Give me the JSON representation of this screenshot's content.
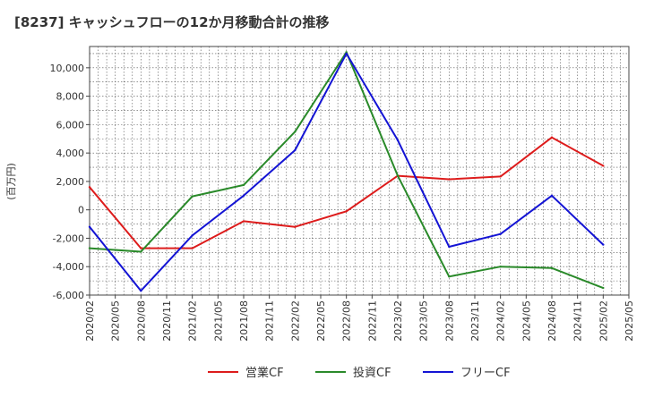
{
  "chart_data": {
    "type": "line",
    "title": "[8237]  キャッシュフローの12か月移動合計の推移",
    "ylabel": "(百万円)",
    "xlabel": "",
    "ylim": [
      -6000,
      11500
    ],
    "yticks": [
      -6000,
      -4000,
      -2000,
      0,
      2000,
      4000,
      6000,
      8000,
      10000
    ],
    "ytick_labels": [
      "-6,000",
      "-4,000",
      "-2,000",
      "0",
      "2,000",
      "4,000",
      "6,000",
      "8,000",
      "10,000"
    ],
    "categories": [
      "2020/02",
      "2020/05",
      "2020/08",
      "2020/11",
      "2021/02",
      "2021/05",
      "2021/08",
      "2021/11",
      "2022/02",
      "2022/05",
      "2022/08",
      "2022/11",
      "2023/02",
      "2023/05",
      "2023/08",
      "2023/11",
      "2024/02",
      "2024/05",
      "2024/08",
      "2024/11",
      "2025/02",
      "2025/05"
    ],
    "grid": true,
    "legend_position": "bottom",
    "series": [
      {
        "name": "営業CF",
        "color": "#dd1c1c",
        "x": [
          "2020/02",
          "2020/08",
          "2021/02",
          "2021/08",
          "2022/02",
          "2022/08",
          "2023/02",
          "2023/08",
          "2024/02",
          "2024/08",
          "2025/02"
        ],
        "values": [
          1600,
          -2700,
          -2700,
          -800,
          -1200,
          -100,
          2400,
          2150,
          2350,
          5100,
          3100
        ]
      },
      {
        "name": "投資CF",
        "color": "#2a8a2a",
        "x": [
          "2020/02",
          "2020/08",
          "2021/02",
          "2021/08",
          "2022/02",
          "2022/08",
          "2023/02",
          "2023/08",
          "2024/02",
          "2024/08",
          "2025/02"
        ],
        "values": [
          -2700,
          -2950,
          950,
          1750,
          5500,
          11100,
          2400,
          -4700,
          -4000,
          -4100,
          -5500
        ]
      },
      {
        "name": "フリーCF",
        "color": "#1414d4",
        "x": [
          "2020/02",
          "2020/08",
          "2021/02",
          "2021/08",
          "2022/02",
          "2022/08",
          "2023/02",
          "2023/08",
          "2024/02",
          "2024/08",
          "2025/02"
        ],
        "values": [
          -1200,
          -5700,
          -1800,
          1000,
          4200,
          11000,
          4900,
          -2600,
          -1700,
          1000,
          -2450
        ]
      }
    ]
  }
}
